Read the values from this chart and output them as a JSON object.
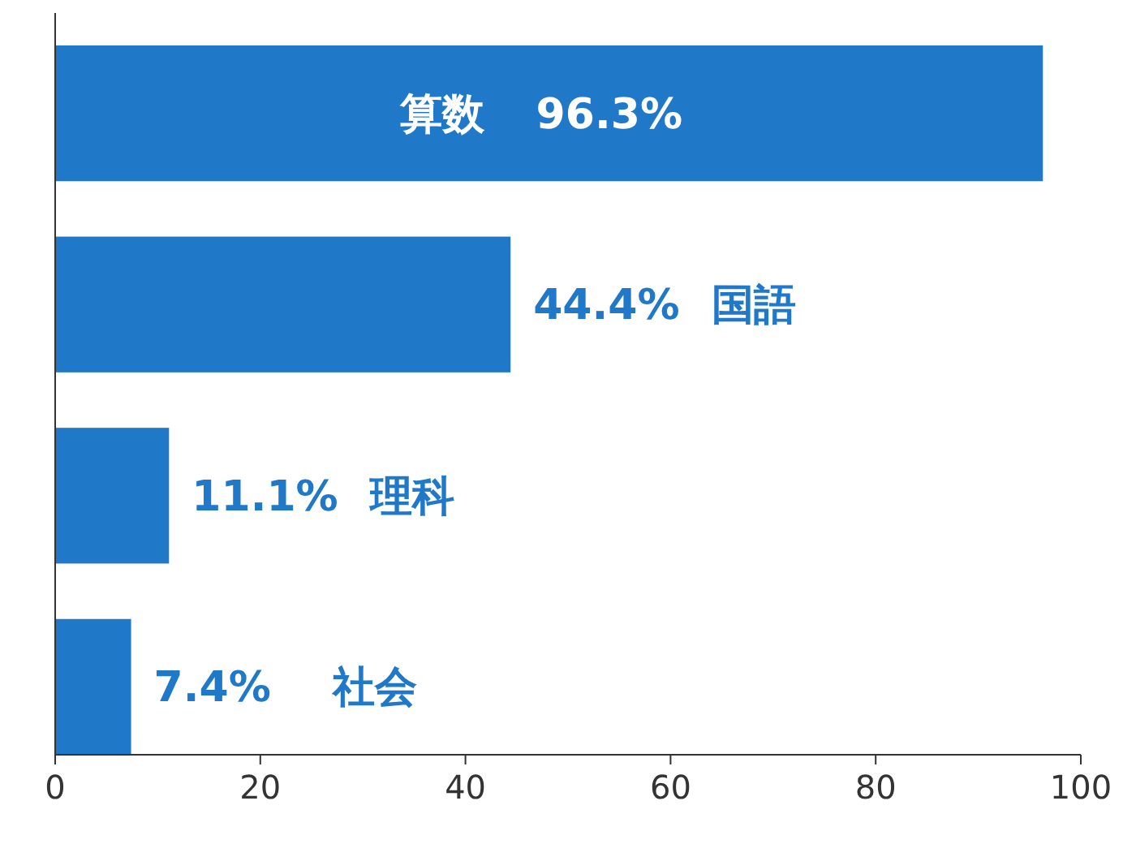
{
  "chart_data": {
    "type": "bar",
    "orientation": "horizontal",
    "categories": [
      "算数",
      "国語",
      "理科",
      "社会"
    ],
    "values": [
      96.3,
      44.4,
      11.1,
      7.4
    ],
    "value_labels": [
      "96.3%",
      "44.4%",
      "11.1%",
      "7.4%"
    ],
    "color": "#1f78c8",
    "xlim": [
      0,
      100
    ],
    "xticks": [
      0,
      20,
      40,
      60,
      80,
      100
    ],
    "grid": false
  }
}
